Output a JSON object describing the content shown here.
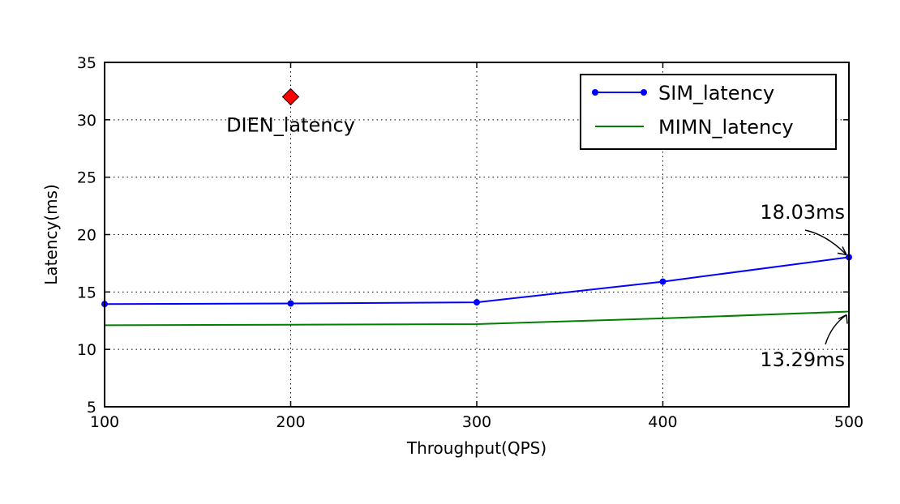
{
  "chart_data": {
    "type": "line",
    "title": "",
    "xlabel": "Throughput(QPS)",
    "ylabel": "Latency(ms)",
    "xlim": [
      100,
      500
    ],
    "ylim": [
      5,
      35
    ],
    "xticks": [
      100,
      200,
      300,
      400,
      500
    ],
    "yticks": [
      5,
      10,
      15,
      20,
      25,
      30,
      35
    ],
    "grid": true,
    "legend_position": "top-right",
    "series": [
      {
        "name": "SIM_latency",
        "color": "#0000ff",
        "marker": "circle",
        "x": [
          100,
          200,
          300,
          400,
          500
        ],
        "y": [
          13.95,
          14.0,
          14.1,
          15.9,
          18.03
        ]
      },
      {
        "name": "MIMN_latency",
        "color": "#008000",
        "marker": "none",
        "x": [
          100,
          200,
          300,
          400,
          500
        ],
        "y": [
          12.1,
          12.15,
          12.2,
          12.7,
          13.29
        ]
      }
    ],
    "points": [
      {
        "name": "DIEN_latency",
        "color": "#ff0000",
        "marker": "diamond",
        "x": 200,
        "y": 32
      }
    ],
    "annotations": [
      {
        "text": "18.03ms",
        "x": 500,
        "y": 18.03
      },
      {
        "text": "13.29ms",
        "x": 500,
        "y": 13.29
      }
    ]
  }
}
